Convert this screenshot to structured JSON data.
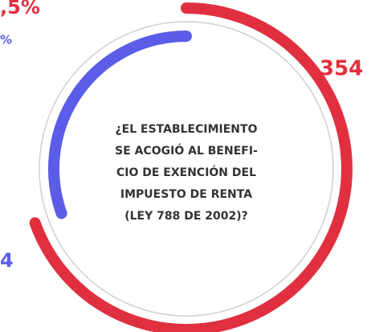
{
  "chart_data": {
    "type": "radial",
    "values": [
      354,
      155
    ],
    "colors": [
      "#e0303f",
      "#5b5ce8"
    ],
    "annotations": [
      ",5%",
      "%",
      "354",
      "4"
    ],
    "annotation_colors": [
      "#e0303f",
      "#5b5ce8",
      "#e0303f",
      "#5b5ce8"
    ],
    "center_text": [
      "¿EL ESTABLECIMIENTO",
      "SE ACOGIÓ AL BENEFI-",
      "CIO DE EXENCIÓN DEL",
      "IMPUESTO DE RENTA",
      "(LEY 788 DE 2002)?"
    ]
  }
}
